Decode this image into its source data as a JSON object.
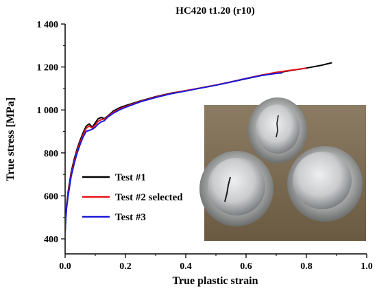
{
  "chart_data": {
    "type": "line",
    "title": "HC420 t1.20 (r10)",
    "xlabel": "True plastic strain",
    "ylabel": "True stress [MPa]",
    "xlim": [
      0,
      1.0
    ],
    "ylim": [
      330,
      1400
    ],
    "xticks": [
      0.0,
      0.2,
      0.4,
      0.6,
      0.8,
      1.0
    ],
    "xtick_labels": [
      "0.0",
      "0.2",
      "0.4",
      "0.6",
      "0.8",
      "1.0"
    ],
    "yticks": [
      400,
      600,
      800,
      1000,
      1200,
      1400
    ],
    "ytick_labels": [
      "400",
      "600",
      "800",
      "1 000",
      "1 200",
      "1 400"
    ],
    "grid": false,
    "legend_position": "lower-left",
    "series": [
      {
        "name": "Test #1",
        "color": "#000000",
        "x": [
          0.0,
          0.002,
          0.005,
          0.01,
          0.02,
          0.03,
          0.04,
          0.05,
          0.06,
          0.07,
          0.08,
          0.09,
          0.1,
          0.11,
          0.12,
          0.13,
          0.14,
          0.16,
          0.18,
          0.2,
          0.25,
          0.3,
          0.35,
          0.4,
          0.45,
          0.5,
          0.55,
          0.6,
          0.65,
          0.7,
          0.75,
          0.8,
          0.85,
          0.885
        ],
        "y": [
          430,
          500,
          560,
          620,
          710,
          770,
          820,
          860,
          895,
          925,
          935,
          920,
          940,
          960,
          965,
          960,
          970,
          995,
          1010,
          1020,
          1042,
          1062,
          1078,
          1090,
          1102,
          1115,
          1130,
          1145,
          1160,
          1172,
          1184,
          1195,
          1208,
          1220
        ]
      },
      {
        "name": "Test #2 selected",
        "color": "#e8141c",
        "x": [
          0.0,
          0.002,
          0.005,
          0.01,
          0.02,
          0.03,
          0.04,
          0.05,
          0.06,
          0.07,
          0.08,
          0.09,
          0.1,
          0.11,
          0.12,
          0.13,
          0.14,
          0.16,
          0.18,
          0.2,
          0.25,
          0.3,
          0.35,
          0.4,
          0.45,
          0.5,
          0.55,
          0.6,
          0.65,
          0.7,
          0.75,
          0.8
        ],
        "y": [
          430,
          495,
          550,
          610,
          700,
          760,
          810,
          850,
          885,
          915,
          925,
          915,
          930,
          948,
          955,
          958,
          968,
          990,
          1005,
          1015,
          1040,
          1060,
          1076,
          1090,
          1103,
          1116,
          1131,
          1147,
          1162,
          1175,
          1185,
          1195
        ]
      },
      {
        "name": "Test #3",
        "color": "#1a1adb",
        "x": [
          0.0,
          0.002,
          0.005,
          0.01,
          0.02,
          0.03,
          0.04,
          0.05,
          0.06,
          0.07,
          0.08,
          0.09,
          0.1,
          0.11,
          0.12,
          0.13,
          0.14,
          0.16,
          0.18,
          0.2,
          0.25,
          0.3,
          0.35,
          0.4,
          0.45,
          0.5,
          0.55,
          0.6,
          0.65,
          0.7,
          0.72
        ],
        "y": [
          430,
          490,
          545,
          600,
          690,
          750,
          800,
          840,
          875,
          900,
          905,
          910,
          920,
          935,
          945,
          950,
          965,
          985,
          1000,
          1012,
          1038,
          1058,
          1075,
          1088,
          1102,
          1115,
          1130,
          1146,
          1160,
          1170,
          1172
        ]
      }
    ]
  },
  "inset_photo": {
    "icon": "photo-of-three-cracked-bulge-test-specimens",
    "background": "#7a6a52",
    "plate_color": "#b7b8b6",
    "dome_color": "#cfd1d3",
    "crack_color": "#1a1a1a"
  }
}
